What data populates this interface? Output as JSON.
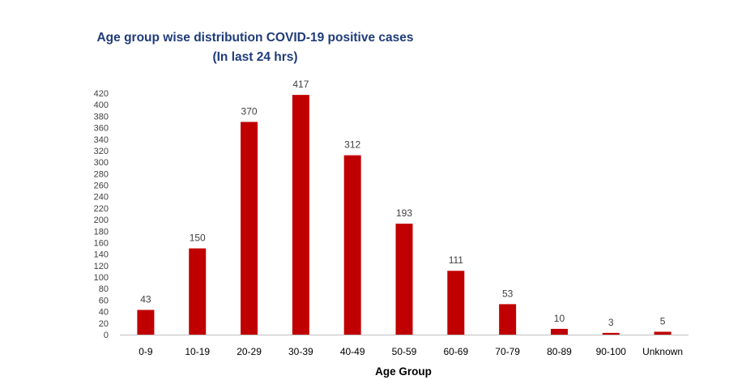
{
  "chart_data": {
    "type": "bar",
    "title": "Age group wise distribution COVID-19 positive cases",
    "subtitle": "(In last 24 hrs)",
    "xlabel": "Age Group",
    "ylabel": "",
    "categories": [
      "0-9",
      "10-19",
      "20-29",
      "30-39",
      "40-49",
      "50-59",
      "60-69",
      "70-79",
      "80-89",
      "90-100",
      "Unknown"
    ],
    "values": [
      43,
      150,
      370,
      417,
      312,
      193,
      111,
      53,
      10,
      3,
      5
    ],
    "ylim": [
      0,
      420
    ],
    "ytick_step": 20,
    "grid": false,
    "legend": "none",
    "colors": {
      "bar": "#c00000",
      "title": "#1f3c7a",
      "text": "#404040",
      "axis": "#bfbfbf"
    }
  }
}
